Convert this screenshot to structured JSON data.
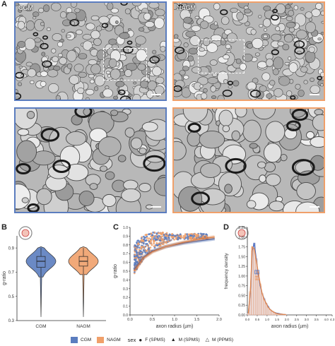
{
  "panels": {
    "A": "A",
    "B": "B",
    "C": "C",
    "D": "D"
  },
  "em": {
    "cgm_label": "CGM",
    "nagm_label": "NAGM",
    "cgm_color": "#5b7dbf",
    "nagm_color": "#f0a06a"
  },
  "chart_data": [
    {
      "type": "violin",
      "panel": "B",
      "categories": [
        "CGM",
        "NAGM"
      ],
      "ylabel": "g-ratio",
      "yticks": [
        0.3,
        0.5,
        0.7,
        0.9
      ],
      "ylim": [
        0.3,
        1.0
      ],
      "xlabel": "",
      "series": [
        {
          "name": "CGM",
          "median": 0.79,
          "q1": 0.74,
          "q3": 0.83,
          "min": 0.66,
          "max": 0.9
        },
        {
          "name": "NAGM",
          "median": 0.79,
          "q1": 0.75,
          "q3": 0.83,
          "min": 0.68,
          "max": 0.9
        }
      ]
    },
    {
      "type": "scatter",
      "panel": "C",
      "xlabel": "axon radius (µm)",
      "ylabel": "g-ratio",
      "xlim": [
        0,
        2
      ],
      "ylim": [
        0,
        1.0
      ],
      "xticks": [
        "0.0",
        "0.5",
        "1.0",
        "1.5",
        "2.0"
      ],
      "yticks": [
        "0.0",
        "0.1",
        "0.2",
        "0.3",
        "0.4",
        "0.5",
        "0.6",
        "0.7",
        "0.8",
        "0.9",
        "1.0"
      ],
      "series": [
        {
          "name": "CGM",
          "fit_x": [
            0.1,
            0.3,
            0.5,
            0.8,
            1.2,
            1.6,
            1.9
          ],
          "fit_y": [
            0.52,
            0.66,
            0.73,
            0.78,
            0.82,
            0.85,
            0.87
          ]
        },
        {
          "name": "NAGM",
          "fit_x": [
            0.1,
            0.3,
            0.5,
            0.8,
            1.2,
            1.6,
            1.9
          ],
          "fit_y": [
            0.5,
            0.65,
            0.72,
            0.78,
            0.83,
            0.87,
            0.89
          ]
        }
      ]
    },
    {
      "type": "histogram",
      "panel": "D",
      "xlabel": "axon radius (µm)",
      "ylabel": "frequency density",
      "xticks": [
        "0.0",
        "0.5",
        "1.0",
        "1.5",
        "2.0",
        "2.5",
        "3.0",
        "3.5",
        "4.0",
        "4.3"
      ],
      "xlim": [
        0,
        4.3
      ],
      "yticks": [
        "0.00",
        "0.25",
        "0.50",
        "0.75",
        "1.00",
        "1.25",
        "1.50",
        "1.75",
        "2.00",
        "2.25"
      ],
      "ylim": [
        0,
        2.25
      ],
      "bin_width": 0.1,
      "bins": [
        0.05,
        0.15,
        0.25,
        0.35,
        0.45,
        0.55,
        0.65,
        0.75,
        0.85,
        0.95,
        1.05,
        1.15,
        1.25,
        1.35,
        1.45,
        1.55,
        1.65,
        1.75,
        1.85,
        1.95
      ],
      "series": [
        {
          "name": "CGM",
          "density": [
            0.05,
            0.55,
            1.65,
            1.85,
            1.45,
            1.05,
            0.75,
            0.55,
            0.42,
            0.3,
            0.22,
            0.14,
            0.1,
            0.07,
            0.05,
            0.04,
            0.03,
            0.02,
            0.01,
            0.01
          ]
        },
        {
          "name": "NAGM",
          "density": [
            0.04,
            0.6,
            1.75,
            1.7,
            1.4,
            1.1,
            0.8,
            0.55,
            0.4,
            0.3,
            0.2,
            0.14,
            0.1,
            0.07,
            0.04,
            0.03,
            0.02,
            0.02,
            0.01,
            0.01
          ]
        }
      ]
    }
  ],
  "legend": {
    "cgm": "CGM",
    "nagm": "NAGM",
    "sex_title": "sex",
    "f_spms": "F (SPMS)",
    "m_spms": "M (SPMS)",
    "m_ppms": "M (PPMS)"
  }
}
